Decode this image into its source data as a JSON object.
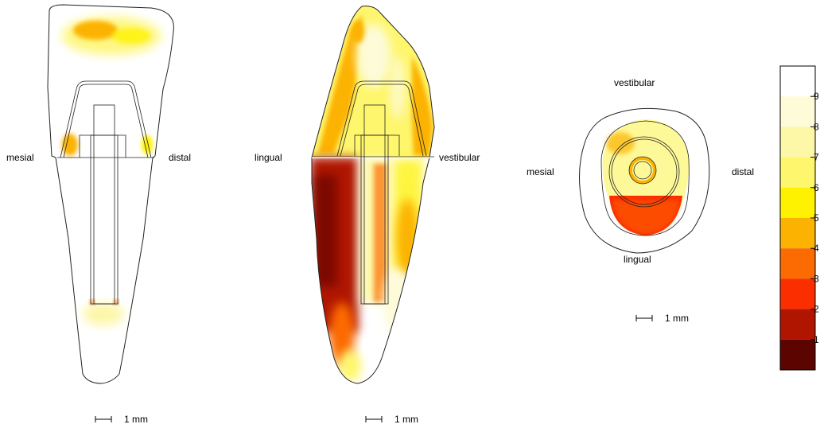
{
  "section_views": {
    "mesiodistal": {
      "left_label": "mesial",
      "right_label": "distal",
      "scale_label": "1 mm"
    },
    "linguovestibular": {
      "left_label": "lingual",
      "right_label": "vestibular",
      "scale_label": "1 mm"
    },
    "cross_section": {
      "top_label": "vestibular",
      "bottom_label": "lingual",
      "left_label": "mesial",
      "right_label": "distal",
      "scale_label": "1 mm"
    }
  },
  "color_scale": {
    "ticks": [
      "9",
      "8",
      "7",
      "6",
      "5",
      "4",
      "3",
      "2",
      "1"
    ],
    "colors": [
      "#ffffff",
      "#fdfbd8",
      "#fdf7a8",
      "#fef66c",
      "#fef200",
      "#fcb200",
      "#fc6a02",
      "#fb2e00",
      "#b01500",
      "#5c0500"
    ]
  }
}
